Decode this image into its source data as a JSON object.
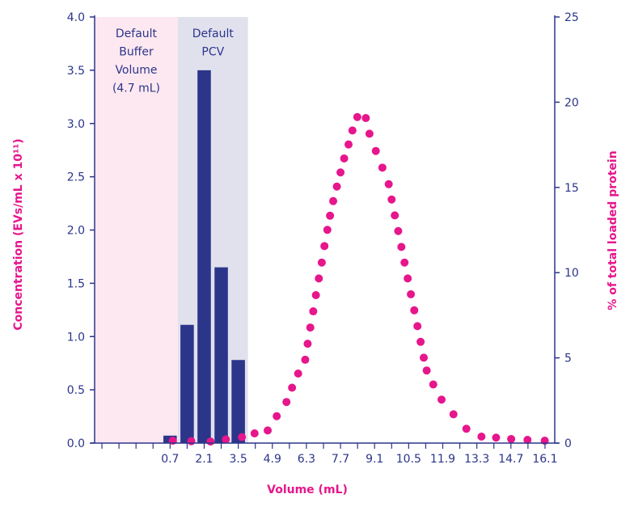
{
  "chart_data": {
    "type": "bar+scatter",
    "xlabel": "Volume (mL)",
    "ylabel_left": "Concentration (EVs/mL x 10¹¹)",
    "ylabel_right": "% of total loaded protein",
    "xlim": [
      -2.4,
      16.5
    ],
    "ylim_left": [
      0,
      4.0
    ],
    "ylim_right": [
      0,
      25
    ],
    "x_tick_labels": [
      "0.7",
      "2.1",
      "3.5",
      "4.9",
      "6.3",
      "7.7",
      "9.1",
      "10.5",
      "11.9",
      "13.3",
      "14.7",
      "16.1"
    ],
    "y_left_ticks": [
      "0.0",
      "0.5",
      "1.0",
      "1.5",
      "2.0",
      "2.5",
      "3.0",
      "3.5",
      "4.0"
    ],
    "y_right_ticks": [
      "0",
      "5",
      "10",
      "15",
      "20",
      "25"
    ],
    "grid": false,
    "regions": [
      {
        "label_lines": [
          "Default",
          "Buffer",
          "Volume",
          "(4.7 mL)"
        ],
        "x0": -2.4,
        "x1": 1.02,
        "color": "#fde8f1"
      },
      {
        "label_lines": [
          "Default",
          "PCV"
        ],
        "x0": 1.02,
        "x1": 3.9,
        "color": "#e1e1ee"
      }
    ],
    "bars": {
      "axis": "left",
      "color": "#2b3589",
      "x": [
        0.7,
        1.4,
        2.1,
        2.8,
        3.5
      ],
      "values": [
        0.07,
        1.11,
        3.5,
        1.65,
        0.78
      ]
    },
    "points": {
      "axis": "right",
      "color": "#e6168c",
      "x": [
        0.81,
        1.57,
        2.36,
        2.99,
        3.65,
        4.17,
        4.71,
        5.08,
        5.48,
        5.71,
        5.96,
        6.25,
        6.35,
        6.46,
        6.58,
        6.69,
        6.81,
        6.93,
        7.04,
        7.16,
        7.27,
        7.4,
        7.55,
        7.7,
        7.85,
        8.03,
        8.19,
        8.39,
        8.74,
        8.89,
        9.15,
        9.42,
        9.68,
        9.8,
        9.93,
        10.07,
        10.2,
        10.33,
        10.46,
        10.59,
        10.73,
        10.86,
        10.99,
        11.12,
        11.24,
        11.51,
        11.85,
        12.34,
        12.87,
        13.49,
        14.09,
        14.71,
        15.38,
        16.09
      ],
      "y": [
        0.14,
        0.11,
        0.09,
        0.22,
        0.35,
        0.57,
        0.74,
        1.58,
        2.41,
        3.25,
        4.08,
        4.89,
        5.83,
        6.78,
        7.73,
        8.68,
        9.66,
        10.59,
        11.56,
        12.51,
        13.34,
        14.2,
        15.05,
        15.88,
        16.7,
        17.52,
        18.34,
        19.13,
        19.07,
        18.15,
        17.14,
        16.16,
        15.19,
        14.29,
        13.36,
        12.44,
        11.51,
        10.59,
        9.66,
        8.73,
        7.79,
        6.86,
        5.94,
        5.01,
        4.26,
        3.44,
        2.55,
        1.69,
        0.84,
        0.38,
        0.32,
        0.24,
        0.19,
        0.14
      ]
    },
    "axis_color": "#2b3589",
    "label_color": "#e6168c"
  }
}
